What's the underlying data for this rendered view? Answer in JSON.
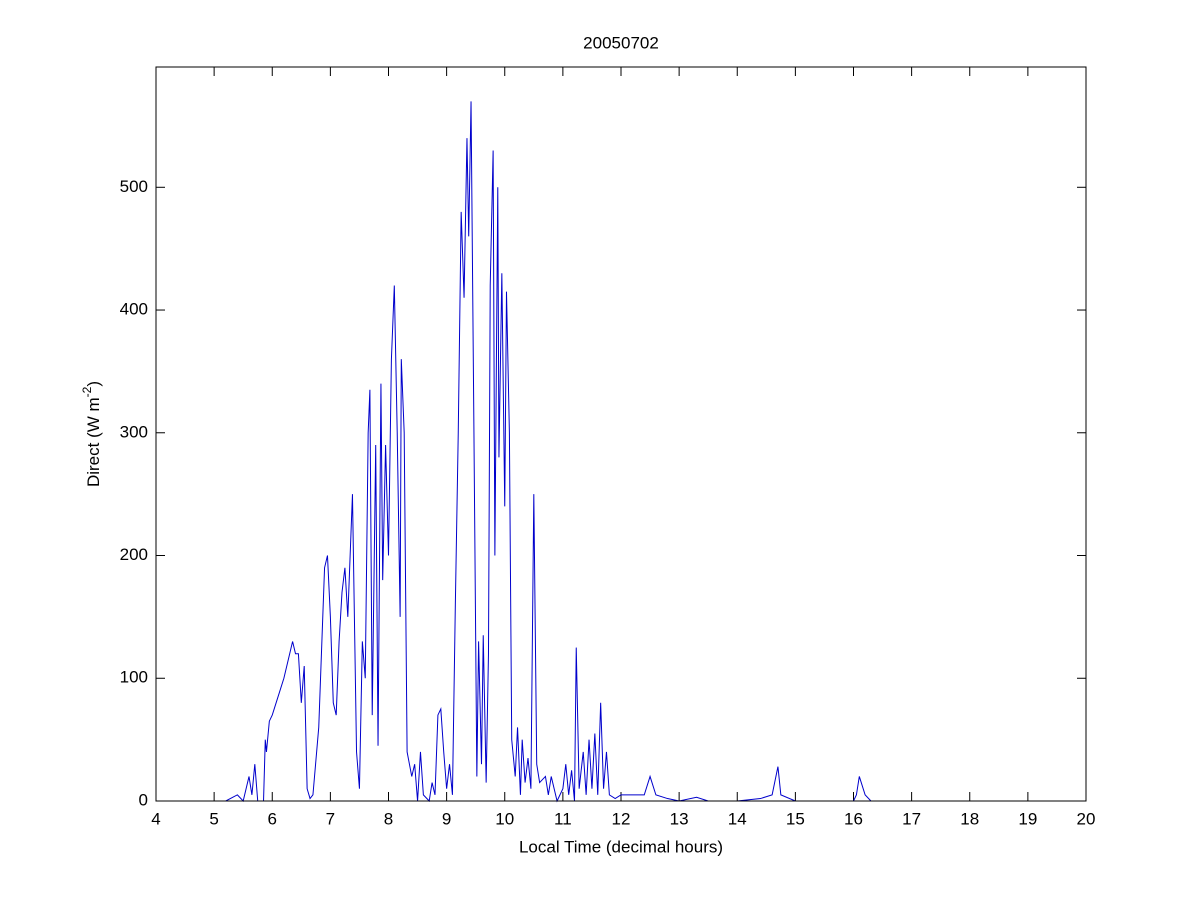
{
  "chart_data": {
    "type": "line",
    "title": "20050702",
    "xlabel": "Local Time (decimal hours)",
    "ylabel": {
      "text": "Direct (W m",
      "superscript": "-2",
      "end": ")"
    },
    "xlim": [
      4,
      20
    ],
    "xticks": [
      4,
      5,
      6,
      7,
      8,
      9,
      10,
      11,
      12,
      13,
      14,
      15,
      16,
      17,
      18,
      19,
      20
    ],
    "ylim": [
      0,
      598
    ],
    "yticks": [
      0,
      100,
      200,
      300,
      400,
      500
    ],
    "series": [
      {
        "color": "#0000cc",
        "x": [
          5.0,
          5.2,
          5.4,
          5.5,
          5.6,
          5.65,
          5.7,
          5.75,
          5.85,
          5.88,
          5.9,
          5.95,
          6.0,
          6.1,
          6.2,
          6.3,
          6.35,
          6.4,
          6.45,
          6.5,
          6.55,
          6.6,
          6.65,
          6.7,
          6.8,
          6.9,
          6.95,
          7.0,
          7.05,
          7.1,
          7.15,
          7.2,
          7.25,
          7.3,
          7.38,
          7.45,
          7.5,
          7.55,
          7.6,
          7.65,
          7.68,
          7.72,
          7.78,
          7.82,
          7.87,
          7.9,
          7.95,
          8.0,
          8.05,
          8.1,
          8.15,
          8.2,
          8.22,
          8.27,
          8.32,
          8.4,
          8.45,
          8.5,
          8.55,
          8.6,
          8.7,
          8.75,
          8.8,
          8.85,
          8.9,
          8.95,
          9.0,
          9.05,
          9.1,
          9.15,
          9.2,
          9.25,
          9.3,
          9.35,
          9.38,
          9.42,
          9.47,
          9.52,
          9.55,
          9.6,
          9.63,
          9.68,
          9.72,
          9.75,
          9.8,
          9.83,
          9.88,
          9.9,
          9.95,
          10.0,
          10.03,
          10.08,
          10.12,
          10.18,
          10.22,
          10.27,
          10.3,
          10.35,
          10.4,
          10.45,
          10.5,
          10.55,
          10.6,
          10.7,
          10.75,
          10.8,
          10.9,
          11.0,
          11.05,
          11.1,
          11.15,
          11.2,
          11.23,
          11.28,
          11.35,
          11.4,
          11.45,
          11.5,
          11.55,
          11.6,
          11.65,
          11.7,
          11.75,
          11.8,
          11.9,
          12.0,
          12.2,
          12.4,
          12.5,
          12.6,
          12.8,
          13.0,
          13.3,
          13.5,
          14.0,
          14.4,
          14.6,
          14.7,
          14.75,
          15.0,
          15.5,
          16.0,
          16.05,
          16.1,
          16.2,
          16.3,
          16.6
        ],
        "values": [
          0,
          0,
          5,
          0,
          20,
          5,
          30,
          0,
          0,
          50,
          40,
          65,
          70,
          85,
          100,
          120,
          130,
          120,
          120,
          80,
          110,
          10,
          2,
          5,
          60,
          190,
          200,
          150,
          80,
          70,
          130,
          170,
          190,
          150,
          250,
          40,
          10,
          130,
          100,
          300,
          335,
          70,
          290,
          45,
          340,
          180,
          290,
          200,
          360,
          420,
          300,
          150,
          360,
          300,
          40,
          20,
          30,
          0,
          40,
          5,
          0,
          15,
          5,
          70,
          75,
          40,
          10,
          30,
          5,
          160,
          300,
          480,
          410,
          540,
          460,
          570,
          300,
          20,
          130,
          30,
          135,
          15,
          120,
          420,
          530,
          200,
          500,
          280,
          430,
          240,
          415,
          300,
          50,
          20,
          60,
          5,
          50,
          15,
          35,
          10,
          250,
          30,
          15,
          20,
          5,
          20,
          0,
          10,
          30,
          5,
          25,
          0,
          125,
          10,
          40,
          5,
          50,
          10,
          55,
          5,
          80,
          10,
          40,
          5,
          2,
          5,
          5,
          5,
          20,
          5,
          2,
          0,
          3,
          0,
          0,
          2,
          5,
          28,
          5,
          0,
          0,
          0,
          5,
          20,
          5,
          0,
          0
        ]
      }
    ]
  }
}
